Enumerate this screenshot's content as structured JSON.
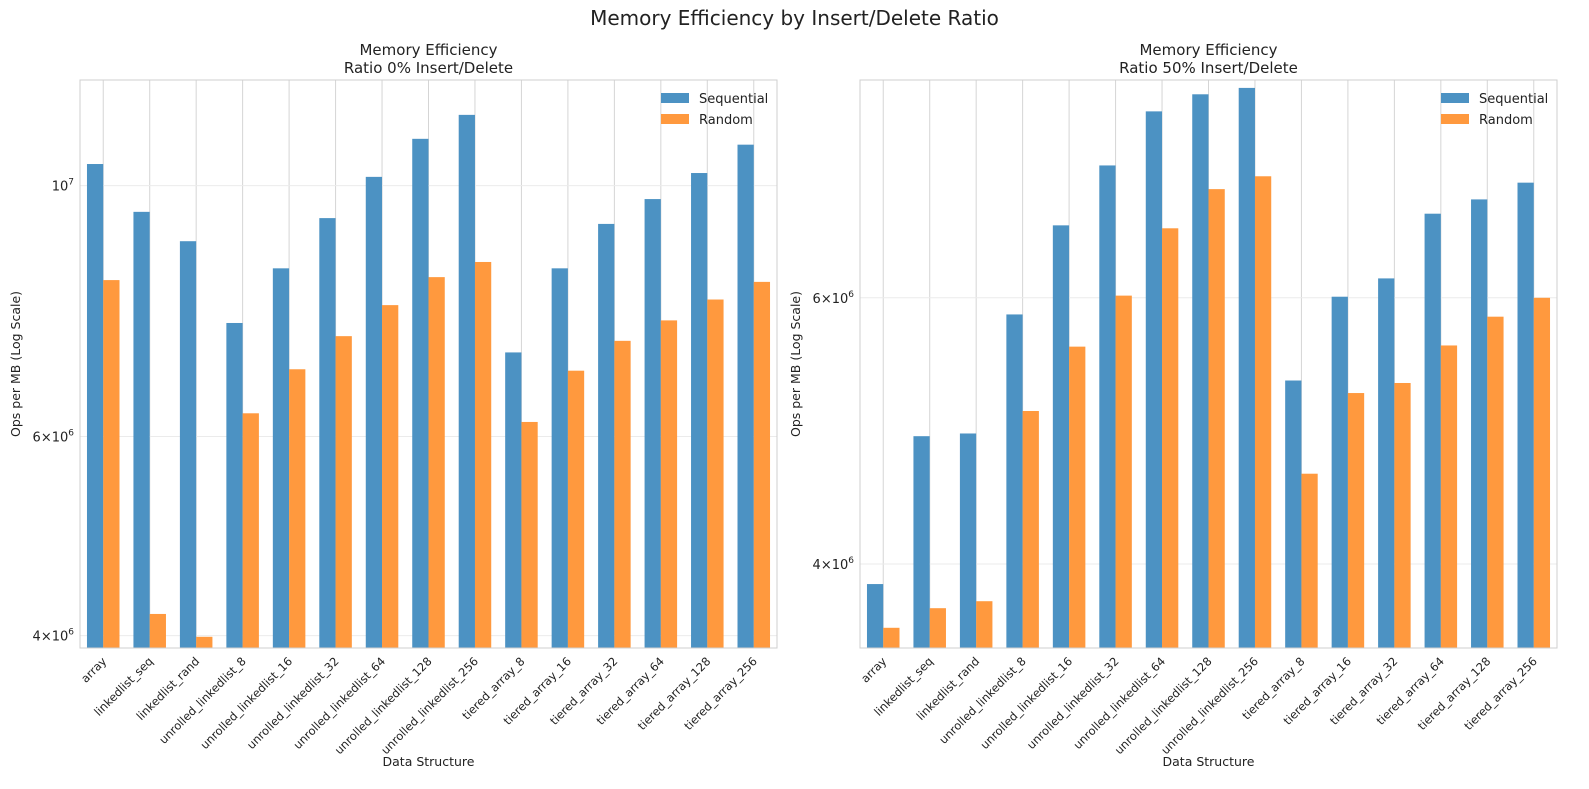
{
  "figure": {
    "suptitle": "Memory Efficiency by Insert/Delete Ratio"
  },
  "chart_data": [
    {
      "type": "bar",
      "title": "Memory Efficiency\nRatio 0% Insert/Delete",
      "xlabel": "Data Structure",
      "ylabel": "Ops per MB (Log Scale)",
      "yscale": "log",
      "ylim": [
        3900000,
        12400000
      ],
      "yticks": [
        {
          "value": 4000000,
          "base": "4",
          "exp": "6"
        },
        {
          "value": 6000000,
          "base": "6",
          "exp": "6"
        },
        {
          "value": 10000000,
          "base": "10",
          "exp": "7"
        }
      ],
      "grid": true,
      "legend": "top-right",
      "categories": [
        "array",
        "linkedlist_seq",
        "linkedlist_rand",
        "unrolled_linkedlist_8",
        "unrolled_linkedlist_16",
        "unrolled_linkedlist_32",
        "unrolled_linkedlist_64",
        "unrolled_linkedlist_128",
        "unrolled_linkedlist_256",
        "tiered_array_8",
        "tiered_array_16",
        "tiered_array_32",
        "tiered_array_64",
        "tiered_array_128",
        "tiered_array_256"
      ],
      "series": [
        {
          "name": "Sequential",
          "color": "#4c92c3",
          "values": [
            10450000,
            9480000,
            8930000,
            7560000,
            8450000,
            9360000,
            10180000,
            11000000,
            11550000,
            7120000,
            8450000,
            9250000,
            9730000,
            10260000,
            10870000
          ]
        },
        {
          "name": "Random",
          "color": "#ff993e",
          "values": [
            8250000,
            4180000,
            3990000,
            6290000,
            6880000,
            7360000,
            7840000,
            8300000,
            8560000,
            6180000,
            6860000,
            7290000,
            7600000,
            7930000,
            8220000
          ]
        }
      ]
    },
    {
      "type": "bar",
      "title": "Memory Efficiency\nRatio 50% Insert/Delete",
      "xlabel": "Data Structure",
      "ylabel": "Ops per MB (Log Scale)",
      "yscale": "log",
      "ylim": [
        3520000,
        8360000
      ],
      "yticks": [
        {
          "value": 4000000,
          "base": "4",
          "exp": "6"
        },
        {
          "value": 6000000,
          "base": "6",
          "exp": "6"
        }
      ],
      "grid": true,
      "legend": "top-right",
      "categories": [
        "array",
        "linkedlist_seq",
        "linkedlist_rand",
        "unrolled_linkedlist_8",
        "unrolled_linkedlist_16",
        "unrolled_linkedlist_32",
        "unrolled_linkedlist_64",
        "unrolled_linkedlist_128",
        "unrolled_linkedlist_256",
        "tiered_array_8",
        "tiered_array_16",
        "tiered_array_32",
        "tiered_array_64",
        "tiered_array_128",
        "tiered_array_256"
      ],
      "series": [
        {
          "name": "Sequential",
          "color": "#4c92c3",
          "values": [
            3880000,
            4860000,
            4880000,
            5850000,
            6700000,
            7340000,
            7970000,
            8180000,
            8260000,
            5290000,
            6010000,
            6180000,
            6820000,
            6970000,
            7150000
          ]
        },
        {
          "name": "Random",
          "color": "#ff993e",
          "values": [
            3630000,
            3740000,
            3780000,
            5050000,
            5570000,
            6020000,
            6670000,
            7080000,
            7220000,
            4590000,
            5190000,
            5270000,
            5580000,
            5830000,
            6000000
          ]
        }
      ]
    }
  ]
}
